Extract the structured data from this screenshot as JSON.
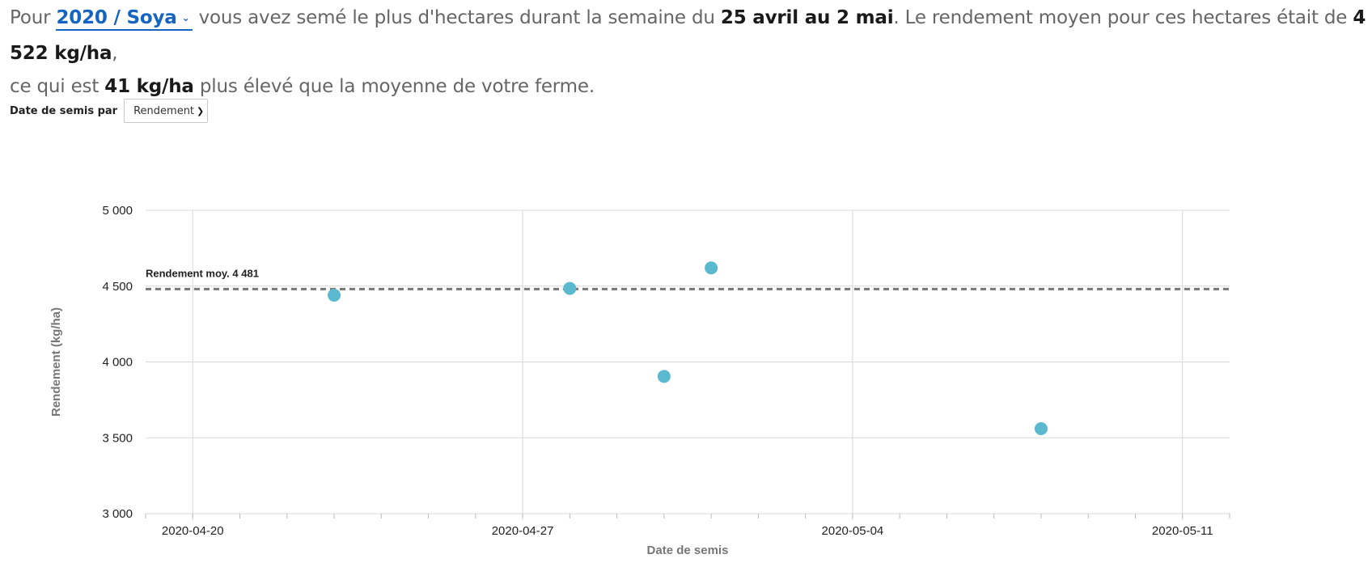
{
  "summary": {
    "prefix": "Pour",
    "crop_selector": "2020 / Soya",
    "part2": "vous avez semé le plus d'hectares durant la semaine du",
    "week": "25 avril au 2 mai",
    "part3": ". Le rendement moyen pour ces hectares était de",
    "avg_yield": "4 522 kg/ha",
    "part4": ",",
    "part5": "ce qui est",
    "diff": "41 kg/ha",
    "part6": "plus élevé que la moyenne de votre ferme."
  },
  "controls": {
    "label": "Date de semis par",
    "select_value": "Rendement"
  },
  "colors": {
    "point": "#5ab8cf",
    "grid": "#d8d8d8",
    "avg_line": "#777777",
    "link": "#1565c0"
  },
  "chart_data": {
    "type": "scatter",
    "xlabel": "Date de semis",
    "ylabel": "Rendement (kg/ha)",
    "xlim": [
      "2020-04-19",
      "2020-05-12"
    ],
    "ylim": [
      3000,
      5000
    ],
    "x_ticks": [
      "2020-04-20",
      "2020-04-27",
      "2020-05-04",
      "2020-05-11"
    ],
    "y_ticks": [
      {
        "value": 3000,
        "label": "3 000"
      },
      {
        "value": 3500,
        "label": "3 500"
      },
      {
        "value": 4000,
        "label": "4 000"
      },
      {
        "value": 4500,
        "label": "4 500"
      },
      {
        "value": 5000,
        "label": "5 000"
      }
    ],
    "average": {
      "value": 4481,
      "label": "Rendement moy. 4 481"
    },
    "points": [
      {
        "x": "2020-04-23",
        "y": 4440
      },
      {
        "x": "2020-04-28",
        "y": 4485
      },
      {
        "x": "2020-04-30",
        "y": 3905
      },
      {
        "x": "2020-05-01",
        "y": 4620
      },
      {
        "x": "2020-05-08",
        "y": 3560
      }
    ],
    "grid": true
  }
}
